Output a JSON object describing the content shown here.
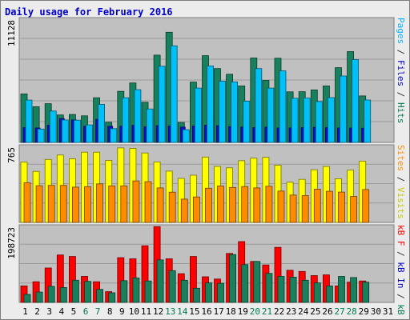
{
  "title": "Daily usage for February 2016",
  "chart_data": [
    {
      "type": "bar",
      "panel": "hits-files-pages",
      "ymax_label": "11128",
      "ylim": [
        0,
        11128
      ],
      "grid": true,
      "legend_right": [
        {
          "text": "Pages",
          "color": "#00b0ff"
        },
        {
          "text": " / ",
          "color": "#333333"
        },
        {
          "text": "Files",
          "color": "#0000cc"
        },
        {
          "text": " / ",
          "color": "#333333"
        },
        {
          "text": "Hits",
          "color": "#007a50"
        }
      ],
      "categories": [
        "1",
        "2",
        "3",
        "4",
        "5",
        "6",
        "7",
        "8",
        "9",
        "10",
        "11",
        "12",
        "13",
        "14",
        "15",
        "16",
        "17",
        "18",
        "19",
        "20",
        "21",
        "22",
        "23",
        "24",
        "25",
        "26",
        "27",
        "28",
        "29",
        "30",
        "31"
      ],
      "series": [
        {
          "name": "Hits",
          "color": "#18805c",
          "values": [
            4380,
            3220,
            3500,
            2480,
            2520,
            2400,
            4030,
            1820,
            4610,
            5370,
            3630,
            7880,
            9950,
            1800,
            5450,
            7830,
            6670,
            6160,
            5100,
            7620,
            5600,
            7600,
            4570,
            4580,
            4740,
            5100,
            6750,
            8200,
            4200,
            0,
            0
          ]
        },
        {
          "name": "Files",
          "color": "#1010cc",
          "values": [
            1340,
            1300,
            1550,
            2150,
            2030,
            1450,
            2080,
            1450,
            1460,
            1540,
            1410,
            1510,
            1480,
            1380,
            1490,
            1550,
            1510,
            1420,
            1390,
            1340,
            1380,
            1300,
            1310,
            1340,
            1360,
            1330,
            1310,
            1300,
            1280,
            0,
            0
          ]
        },
        {
          "name": "Pages",
          "color": "#00c0f8",
          "values": [
            3820,
            1210,
            2830,
            2030,
            2010,
            1580,
            3430,
            1240,
            4030,
            4760,
            3020,
            6880,
            8720,
            1150,
            4910,
            6900,
            5530,
            5460,
            3720,
            6670,
            4910,
            6460,
            3990,
            4010,
            3690,
            4050,
            6000,
            7480,
            3830,
            0,
            0
          ]
        }
      ]
    },
    {
      "type": "bar",
      "panel": "visits-sites",
      "ymax_label": "765",
      "ylim": [
        0,
        765
      ],
      "grid": true,
      "legend_right": [
        {
          "text": "Sites",
          "color": "#ff8c00"
        },
        {
          "text": " / ",
          "color": "#333333"
        },
        {
          "text": "Visits",
          "color": "#c8c800"
        }
      ],
      "categories": [
        "1",
        "2",
        "3",
        "4",
        "5",
        "6",
        "7",
        "8",
        "9",
        "10",
        "11",
        "12",
        "13",
        "14",
        "15",
        "16",
        "17",
        "18",
        "19",
        "20",
        "21",
        "22",
        "23",
        "24",
        "25",
        "26",
        "27",
        "28",
        "29",
        "30",
        "31"
      ],
      "series": [
        {
          "name": "Visits",
          "color": "#ffff00",
          "values": [
            606,
            514,
            634,
            678,
            640,
            707,
            707,
            624,
            750,
            745,
            699,
            609,
            516,
            443,
            475,
            658,
            564,
            549,
            621,
            647,
            655,
            576,
            404,
            433,
            530,
            563,
            440,
            526,
            617,
            0,
            0
          ]
        },
        {
          "name": "Sites",
          "color": "#ff8c00",
          "values": [
            400,
            370,
            373,
            373,
            355,
            360,
            388,
            368,
            368,
            418,
            410,
            347,
            304,
            234,
            256,
            344,
            367,
            352,
            361,
            347,
            364,
            316,
            275,
            270,
            334,
            313,
            305,
            262,
            331,
            0,
            0
          ]
        }
      ]
    },
    {
      "type": "bar",
      "panel": "traffic",
      "ymax_label": "198723",
      "ylim": [
        0,
        198723
      ],
      "grid": true,
      "legend_right": [
        {
          "text": "kB F",
          "color": "#ff0000"
        },
        {
          "text": " / ",
          "color": "#333333"
        },
        {
          "text": "kB In",
          "color": "#0000cc"
        },
        {
          "text": " / ",
          "color": "#333333"
        },
        {
          "text": "kB Out",
          "color": "#007a50"
        }
      ],
      "categories": [
        "1",
        "2",
        "3",
        "4",
        "5",
        "6",
        "7",
        "8",
        "9",
        "10",
        "11",
        "12",
        "13",
        "14",
        "15",
        "16",
        "17",
        "18",
        "19",
        "20",
        "21",
        "22",
        "23",
        "24",
        "25",
        "26",
        "27",
        "28",
        "29",
        "30",
        "31"
      ],
      "series": [
        {
          "name": "kB F",
          "color": "#ff0000",
          "values": [
            43000,
            54000,
            90000,
            124000,
            120000,
            68000,
            54000,
            28000,
            117000,
            114000,
            148000,
            198000,
            114000,
            75000,
            120000,
            67000,
            61000,
            128000,
            159000,
            107000,
            98000,
            144000,
            84000,
            81000,
            70000,
            72000,
            43000,
            53000,
            56000,
            0,
            0
          ]
        },
        {
          "name": "kB Out",
          "color": "#18805c",
          "values": [
            21000,
            27000,
            42000,
            39000,
            58000,
            55000,
            34000,
            25000,
            57000,
            64000,
            56000,
            111000,
            83000,
            58000,
            37000,
            51000,
            50000,
            125000,
            99000,
            107000,
            76000,
            68000,
            66000,
            58000,
            51000,
            43000,
            68000,
            65000,
            53000,
            0,
            0
          ]
        }
      ]
    }
  ],
  "x_tick_colors": [
    "#000000",
    "#000000",
    "#000000",
    "#000000",
    "#000000",
    "#007a50",
    "#007a50",
    "#000000",
    "#000000",
    "#000000",
    "#000000",
    "#000000",
    "#007a50",
    "#007a50",
    "#000000",
    "#000000",
    "#000000",
    "#000000",
    "#000000",
    "#007a50",
    "#007a50",
    "#000000",
    "#000000",
    "#000000",
    "#000000",
    "#000000",
    "#007a50",
    "#007a50",
    "#000000",
    "#000000",
    "#000000"
  ]
}
